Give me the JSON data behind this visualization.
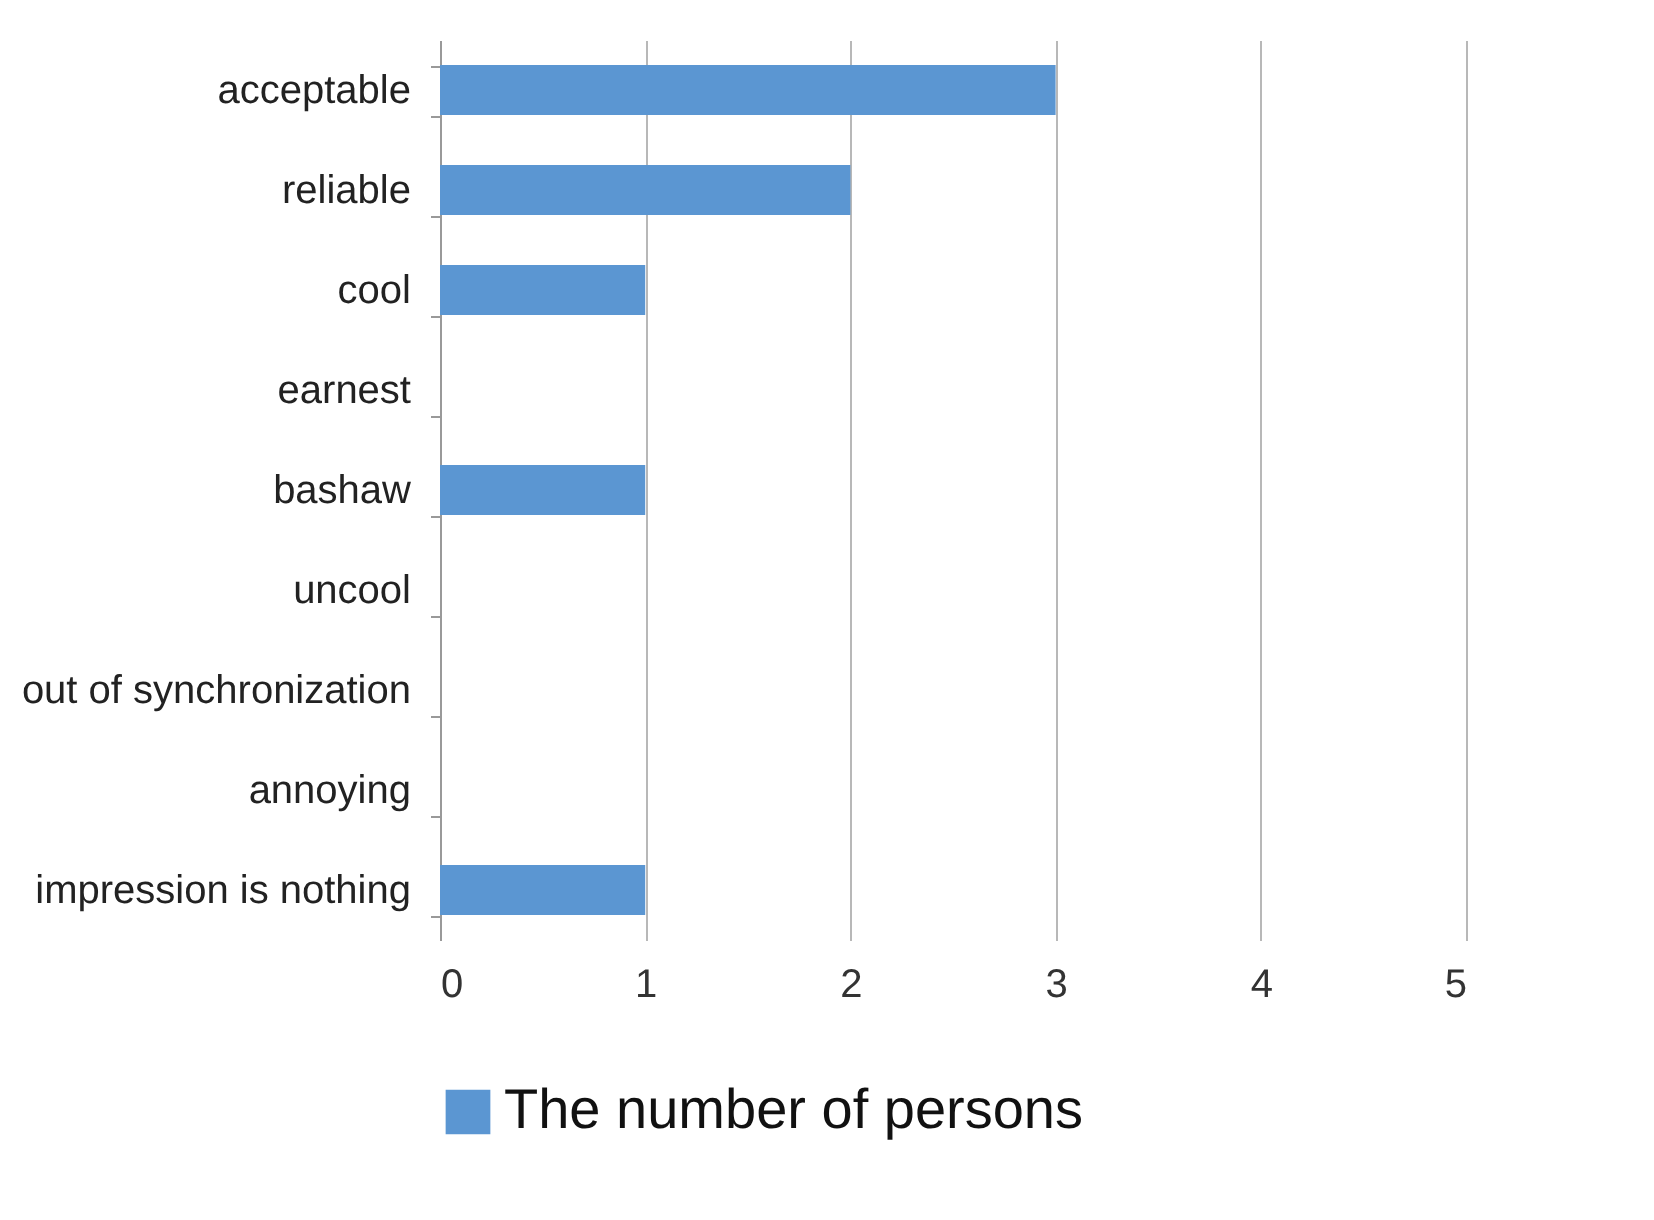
{
  "chart_data": {
    "type": "bar",
    "orientation": "horizontal",
    "categories": [
      "acceptable",
      "reliable",
      "cool",
      "earnest",
      "bashaw",
      "uncool",
      "out of synchronization",
      "annoying",
      "impression is nothing"
    ],
    "series": [
      {
        "name": "The number of persons",
        "color": "#5b96d2",
        "values": [
          3,
          2,
          1,
          0,
          1,
          0,
          0,
          0,
          1
        ]
      }
    ],
    "xlim": [
      0,
      5
    ],
    "xticks": [
      0,
      1,
      2,
      3,
      4,
      5
    ],
    "grid": "x",
    "legend": "bottom"
  }
}
